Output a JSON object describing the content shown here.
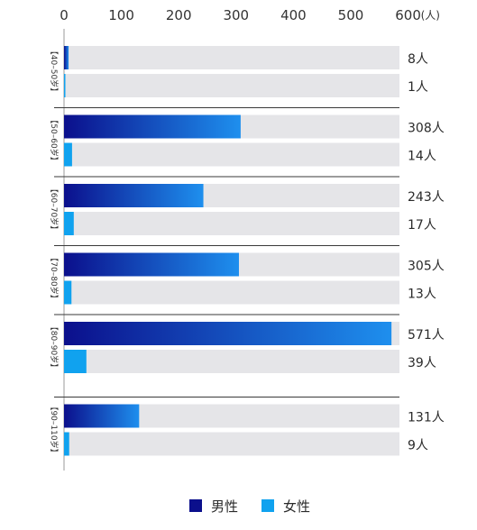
{
  "chart_data": {
    "type": "bar",
    "orientation": "horizontal",
    "unit_label": "(人)",
    "value_suffix": "人",
    "xlim": [
      0,
      600
    ],
    "x_ticks": [
      0,
      100,
      200,
      300,
      400,
      500,
      600
    ],
    "categories": [
      "【40–50岁】",
      "【50–60岁】",
      "【60–70岁】",
      "【70–80岁】",
      "【80–90岁】",
      "【90–110岁】"
    ],
    "series": [
      {
        "name": "男性",
        "values": [
          8,
          308,
          243,
          305,
          571,
          131
        ]
      },
      {
        "name": "女性",
        "values": [
          1,
          14,
          17,
          13,
          39,
          9
        ]
      }
    ],
    "legend": {
      "position": "bottom-center"
    },
    "grid": false
  },
  "colors": {
    "male_start": "#0b0f8c",
    "male_end": "#1e8fee",
    "female": "#10a2ef",
    "track": "#e5e5e8",
    "axis_text": "#333333",
    "label_text": "#2a2a2a",
    "separator": "#3a3a3a"
  }
}
